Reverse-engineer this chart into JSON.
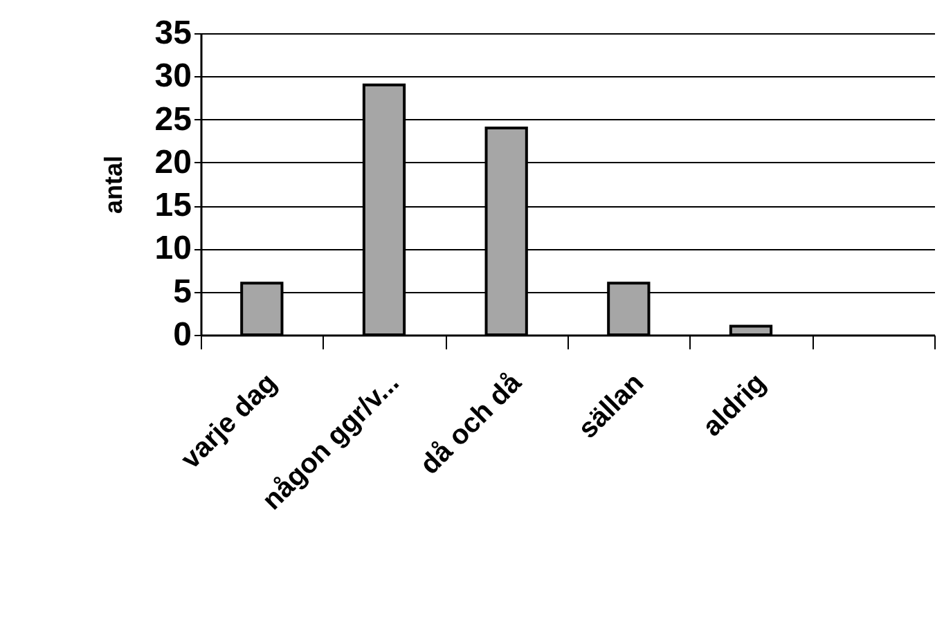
{
  "chart_data": {
    "type": "bar",
    "ylabel": "antal",
    "categories": [
      "varje dag",
      "någon ggr/v...",
      "då och då",
      "sällan",
      "aldrig",
      null
    ],
    "values": [
      6,
      29,
      24,
      6,
      1,
      null
    ],
    "color": "#a6a6a6",
    "ylim": [
      0,
      35
    ],
    "yticks": [
      0,
      5,
      10,
      15,
      20,
      25,
      30,
      35
    ],
    "grid": "y"
  }
}
